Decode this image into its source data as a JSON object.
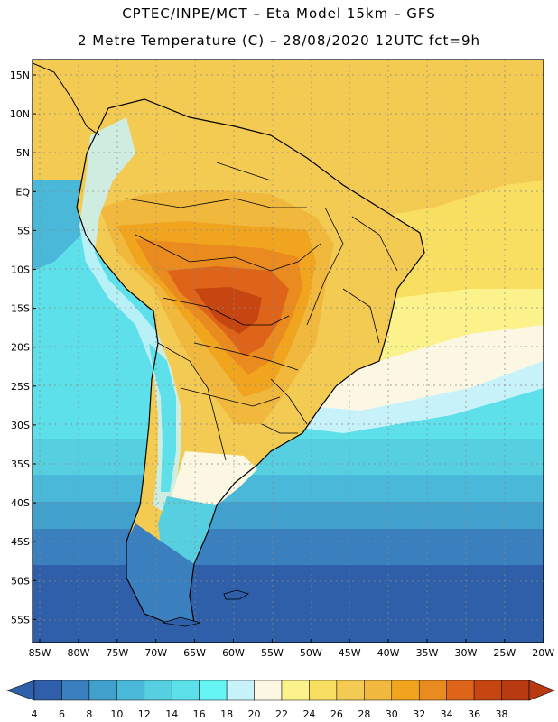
{
  "header": {
    "line1": "CPTEC/INPE/MCT –  Eta Model 15km – GFS",
    "line2": "2 Metre Temperature (C) – 28/08/2020 12UTC fct=9h"
  },
  "map": {
    "lat_labels": [
      "15N",
      "10N",
      "5N",
      "EQ",
      "5S",
      "10S",
      "15S",
      "20S",
      "25S",
      "30S",
      "35S",
      "40S",
      "45S",
      "50S",
      "55S"
    ],
    "lon_labels": [
      "85W",
      "80W",
      "75W",
      "70W",
      "65W",
      "60W",
      "55W",
      "50W",
      "45W",
      "40W",
      "35W",
      "30W",
      "25W",
      "20W"
    ]
  },
  "legend": {
    "colors": [
      "#2f5fa8",
      "#3a7fbe",
      "#41a0cc",
      "#4ab8d8",
      "#56cfe0",
      "#5de0ea",
      "#66f5f5",
      "#c8f2fa",
      "#fbf7e3",
      "#fbf28c",
      "#f8df62",
      "#f4cb52",
      "#f0b83c",
      "#f1a41e",
      "#ea8b20",
      "#dd6418",
      "#c64510",
      "#b83a10"
    ],
    "labels": [
      "4",
      "6",
      "8",
      "10",
      "12",
      "14",
      "16",
      "18",
      "20",
      "22",
      "24",
      "26",
      "28",
      "30",
      "32",
      "34",
      "36",
      "38"
    ]
  }
}
